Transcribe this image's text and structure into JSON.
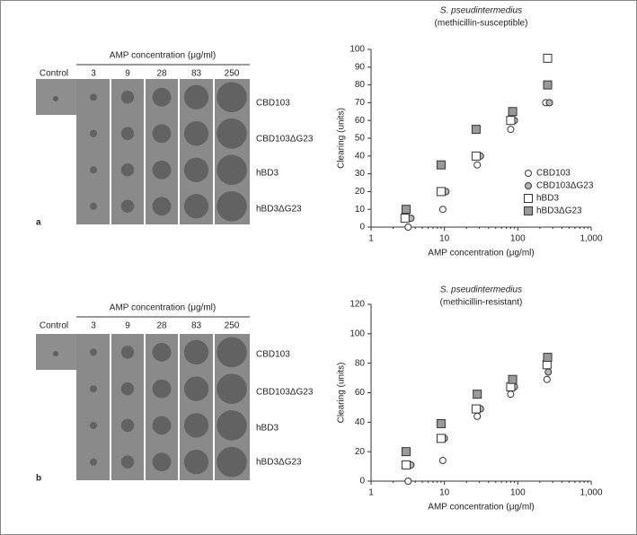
{
  "panels": [
    {
      "letter": "a",
      "header": "AMP concentration (μg/ml)",
      "control_label": "Control",
      "concentrations": [
        "3",
        "9",
        "28",
        "83",
        "250"
      ],
      "rows": [
        "CBD103",
        "CBD103ΔG23",
        "hBD3",
        "hBD3ΔG23"
      ]
    },
    {
      "letter": "b",
      "header": "AMP concentration (μg/ml)",
      "control_label": "Control",
      "concentrations": [
        "3",
        "9",
        "28",
        "83",
        "250"
      ],
      "rows": [
        "CBD103",
        "CBD103ΔG23",
        "hBD3",
        "hBD3ΔG23"
      ]
    }
  ],
  "chart_data": [
    {
      "type": "scatter",
      "title": "S. pseudintermedius",
      "subtitle": "(methicillin-susceptible)",
      "x_label": "AMP concentration (μg/ml)",
      "y_label": "Clearing (units)",
      "xscale": "log",
      "xlim": [
        1,
        1000
      ],
      "xticks": [
        1,
        10,
        100,
        {
          "value": 1000,
          "label": "1,000"
        }
      ],
      "ylim": [
        0,
        100
      ],
      "yticks": [
        0,
        10,
        20,
        30,
        40,
        50,
        60,
        70,
        80,
        90,
        100
      ],
      "grid": false,
      "legend": "lower right",
      "series": [
        {
          "name": "CBD103",
          "marker": "circle",
          "color": "#ffffff",
          "x": [
            3.2,
            9.5,
            28,
            80,
            240
          ],
          "values": [
            0,
            10,
            35,
            55,
            70
          ]
        },
        {
          "name": "CBD103ΔG23",
          "marker": "circle",
          "color": "#b5b5b5",
          "x": [
            3.5,
            10.5,
            31,
            90,
            270
          ],
          "values": [
            5,
            20,
            40,
            60,
            70
          ]
        },
        {
          "name": "hBD3",
          "marker": "square",
          "color": "#ffffff",
          "x": [
            2.9,
            9,
            27,
            80,
            255
          ],
          "values": [
            5,
            20,
            40,
            60,
            95
          ]
        },
        {
          "name": "hBD3ΔG23",
          "marker": "square",
          "color": "#9a9a9a",
          "x": [
            3,
            9,
            27,
            85,
            255
          ],
          "values": [
            10,
            35,
            55,
            65,
            80
          ]
        }
      ]
    },
    {
      "type": "scatter",
      "title": "S. pseudintermedius",
      "subtitle": "(methicillin-resistant)",
      "x_label": "AMP concentration (μg/ml)",
      "y_label": "Clearing (units)",
      "xscale": "log",
      "xlim": [
        1,
        1000
      ],
      "xticks": [
        1,
        10,
        100,
        {
          "value": 1000,
          "label": "1,000"
        }
      ],
      "ylim": [
        0,
        120
      ],
      "yticks": [
        0,
        20,
        40,
        60,
        80,
        100,
        120
      ],
      "grid": false,
      "series": [
        {
          "name": "CBD103",
          "marker": "circle",
          "color": "#ffffff",
          "x": [
            3.2,
            9.5,
            28,
            80,
            250
          ],
          "values": [
            0,
            14,
            44,
            59,
            69
          ]
        },
        {
          "name": "CBD103ΔG23",
          "marker": "circle",
          "color": "#b5b5b5",
          "x": [
            3.5,
            10,
            31,
            90,
            260
          ],
          "values": [
            11,
            29,
            49,
            64,
            74
          ]
        },
        {
          "name": "hBD3",
          "marker": "square",
          "color": "#ffffff",
          "x": [
            3,
            9,
            27,
            80,
            250
          ],
          "values": [
            11,
            29,
            49,
            64,
            79
          ]
        },
        {
          "name": "hBD3ΔG23",
          "marker": "square",
          "color": "#9a9a9a",
          "x": [
            3,
            9,
            28,
            85,
            255
          ],
          "values": [
            20,
            39,
            59,
            69,
            84
          ]
        }
      ]
    }
  ]
}
